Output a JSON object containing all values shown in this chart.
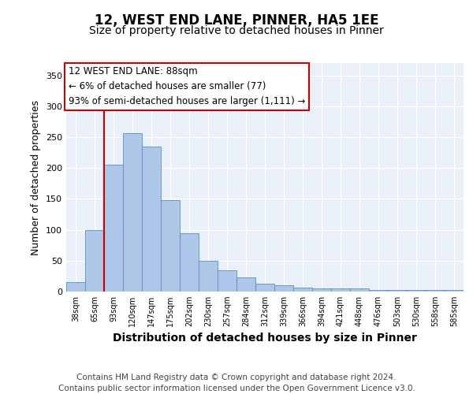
{
  "title1": "12, WEST END LANE, PINNER, HA5 1EE",
  "title2": "Size of property relative to detached houses in Pinner",
  "xlabel": "Distribution of detached houses by size in Pinner",
  "ylabel": "Number of detached properties",
  "categories": [
    "38sqm",
    "65sqm",
    "93sqm",
    "120sqm",
    "147sqm",
    "175sqm",
    "202sqm",
    "230sqm",
    "257sqm",
    "284sqm",
    "312sqm",
    "339sqm",
    "366sqm",
    "394sqm",
    "421sqm",
    "448sqm",
    "476sqm",
    "503sqm",
    "530sqm",
    "558sqm",
    "585sqm"
  ],
  "values": [
    15,
    100,
    205,
    257,
    235,
    148,
    95,
    50,
    35,
    23,
    13,
    10,
    7,
    5,
    5,
    5,
    3,
    2,
    2,
    2,
    3
  ],
  "bar_color": "#aec6e8",
  "bar_edge_color": "#5a8fc0",
  "highlight_line_color": "#cc0000",
  "annotation_box_text": "12 WEST END LANE: 88sqm\n← 6% of detached houses are smaller (77)\n93% of semi-detached houses are larger (1,111) →",
  "annotation_box_color": "#cc0000",
  "annotation_box_facecolor": "white",
  "ylim": [
    0,
    370
  ],
  "yticks": [
    0,
    50,
    100,
    150,
    200,
    250,
    300,
    350
  ],
  "background_color": "#eaf0f8",
  "footer_text": "Contains HM Land Registry data © Crown copyright and database right 2024.\nContains public sector information licensed under the Open Government Licence v3.0.",
  "title1_fontsize": 12,
  "title2_fontsize": 10,
  "xlabel_fontsize": 10,
  "ylabel_fontsize": 9,
  "annotation_fontsize": 8.5,
  "footer_fontsize": 7.5
}
